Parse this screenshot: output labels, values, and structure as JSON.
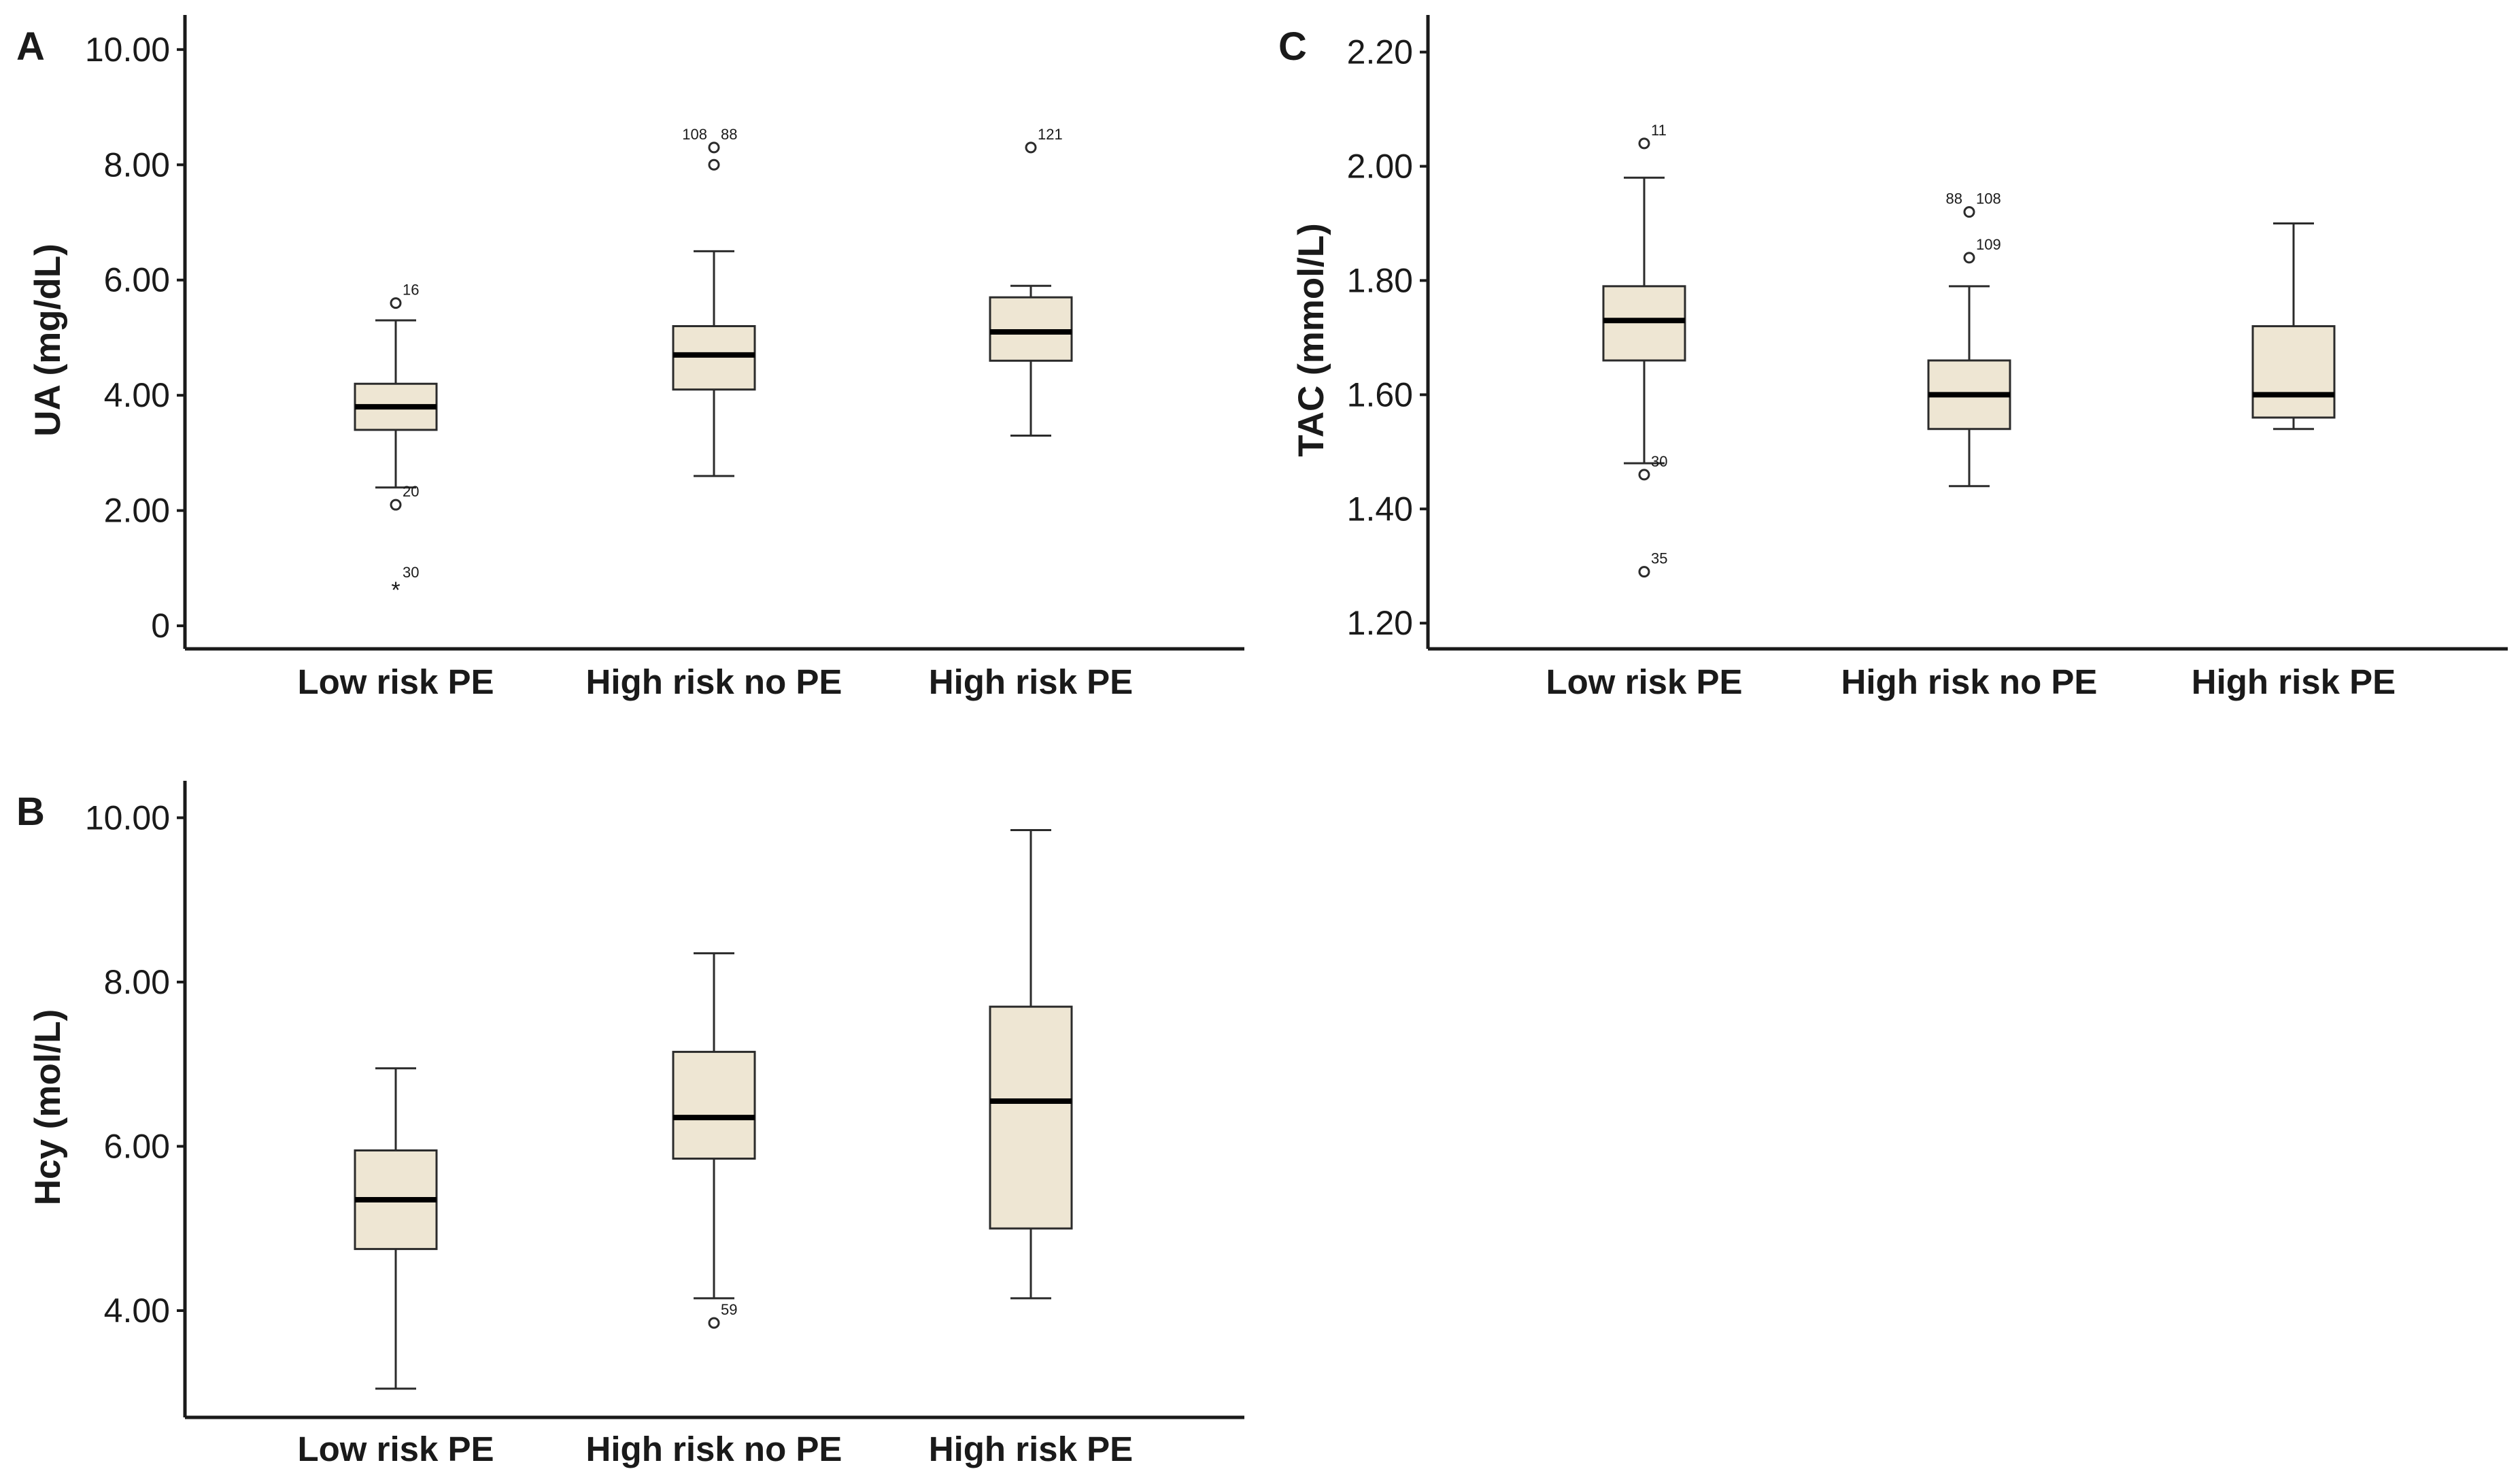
{
  "style": {
    "box_fill": "#eee6d3",
    "box_stroke": "#2b2b2b",
    "median_color": "#000000",
    "text_color": "#1a1a1a"
  },
  "chart_data": [
    {
      "panel": "A",
      "type": "boxplot",
      "ylabel": "UA (mg/dL)",
      "ylim": [
        -0.4,
        10.6
      ],
      "yticks": [
        0,
        2,
        4,
        6,
        8,
        10
      ],
      "ytick_labels": [
        "0",
        "2.00",
        "4.00",
        "6.00",
        "8.00",
        "10.00"
      ],
      "categories": [
        "Low risk PE",
        "High risk no PE",
        "High risk PE"
      ],
      "boxes": [
        {
          "whisker_low": 2.4,
          "q1": 3.4,
          "median": 3.8,
          "q3": 4.2,
          "whisker_high": 5.3,
          "outliers": [
            {
              "value": 5.6,
              "label": "16",
              "marker": "circle"
            },
            {
              "value": 2.1,
              "label": "20",
              "marker": "circle"
            },
            {
              "value": 0.7,
              "label": "30",
              "marker": "star"
            }
          ]
        },
        {
          "whisker_low": 2.6,
          "q1": 4.1,
          "median": 4.7,
          "q3": 5.2,
          "whisker_high": 6.5,
          "outliers": [
            {
              "value": 8.3,
              "label": "108 88",
              "marker": "circle"
            },
            {
              "value": 8.0,
              "label": "",
              "marker": "circle"
            }
          ]
        },
        {
          "whisker_low": 3.3,
          "q1": 4.6,
          "median": 5.1,
          "q3": 5.7,
          "whisker_high": 5.9,
          "outliers": [
            {
              "value": 8.3,
              "label": "121",
              "marker": "circle"
            }
          ]
        }
      ]
    },
    {
      "panel": "B",
      "type": "boxplot",
      "ylabel": "Hcy (mol/L)",
      "ylim": [
        2.7,
        10.45
      ],
      "yticks": [
        4,
        6,
        8,
        10
      ],
      "ytick_labels": [
        "4.00",
        "6.00",
        "8.00",
        "10.00"
      ],
      "categories": [
        "Low risk PE",
        "High risk no PE",
        "High risk PE"
      ],
      "boxes": [
        {
          "whisker_low": 3.05,
          "q1": 4.75,
          "median": 5.35,
          "q3": 5.95,
          "whisker_high": 6.95,
          "outliers": []
        },
        {
          "whisker_low": 4.15,
          "q1": 5.85,
          "median": 6.35,
          "q3": 7.15,
          "whisker_high": 8.35,
          "outliers": [
            {
              "value": 3.85,
              "label": "59",
              "marker": "circle"
            }
          ]
        },
        {
          "whisker_low": 4.15,
          "q1": 5.0,
          "median": 6.55,
          "q3": 7.7,
          "whisker_high": 9.85,
          "outliers": []
        }
      ]
    },
    {
      "panel": "C",
      "type": "boxplot",
      "ylabel": "TAC (mmol/L)",
      "ylim": [
        1.155,
        2.265
      ],
      "yticks": [
        1.2,
        1.4,
        1.6,
        1.8,
        2.0,
        2.2
      ],
      "ytick_labels": [
        "1.20",
        "1.40",
        "1.60",
        "1.80",
        "2.00",
        "2.20"
      ],
      "categories": [
        "Low risk PE",
        "High risk no PE",
        "High risk PE"
      ],
      "boxes": [
        {
          "whisker_low": 1.48,
          "q1": 1.66,
          "median": 1.73,
          "q3": 1.79,
          "whisker_high": 1.98,
          "outliers": [
            {
              "value": 2.04,
              "label": "11",
              "marker": "circle"
            },
            {
              "value": 1.46,
              "label": "30",
              "marker": "circle"
            },
            {
              "value": 1.29,
              "label": "35",
              "marker": "circle"
            }
          ]
        },
        {
          "whisker_low": 1.44,
          "q1": 1.54,
          "median": 1.6,
          "q3": 1.66,
          "whisker_high": 1.79,
          "outliers": [
            {
              "value": 1.92,
              "label": "88 108",
              "marker": "circle"
            },
            {
              "value": 1.84,
              "label": "109",
              "marker": "circle"
            }
          ]
        },
        {
          "whisker_low": 1.54,
          "q1": 1.56,
          "median": 1.6,
          "q3": 1.72,
          "whisker_high": 1.9,
          "outliers": []
        }
      ]
    }
  ]
}
